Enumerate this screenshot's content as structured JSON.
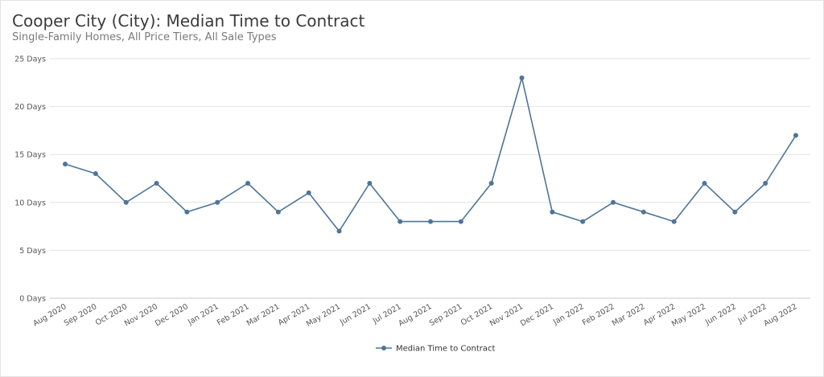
{
  "chart_data": {
    "type": "line",
    "title": "Cooper City (City): Median Time to Contract",
    "subtitle": "Single-Family Homes, All Price Tiers, All Sale Types",
    "xlabel": "",
    "ylabel": "",
    "ylim": [
      0,
      25
    ],
    "y_ticks": [
      0,
      5,
      10,
      15,
      20,
      25
    ],
    "y_tick_labels": [
      "0 Days",
      "5 Days",
      "10 Days",
      "15 Days",
      "20 Days",
      "25 Days"
    ],
    "categories": [
      "Aug 2020",
      "Sep 2020",
      "Oct 2020",
      "Nov 2020",
      "Dec 2020",
      "Jan 2021",
      "Feb 2021",
      "Mar 2021",
      "Apr 2021",
      "May 2021",
      "Jun 2021",
      "Jul 2021",
      "Aug 2021",
      "Sep 2021",
      "Oct 2021",
      "Nov 2021",
      "Dec 2021",
      "Jan 2022",
      "Feb 2022",
      "Mar 2022",
      "Apr 2022",
      "May 2022",
      "Jun 2022",
      "Jul 2022",
      "Aug 2022"
    ],
    "series": [
      {
        "name": "Median Time to Contract",
        "values": [
          14,
          13,
          10,
          12,
          9,
          10,
          12,
          9,
          11,
          7,
          12,
          8,
          8,
          8,
          12,
          23,
          9,
          8,
          10,
          9,
          8,
          12,
          9,
          12,
          17
        ],
        "color": "#4e7598"
      }
    ],
    "grid": true,
    "legend_position": "bottom-center"
  }
}
